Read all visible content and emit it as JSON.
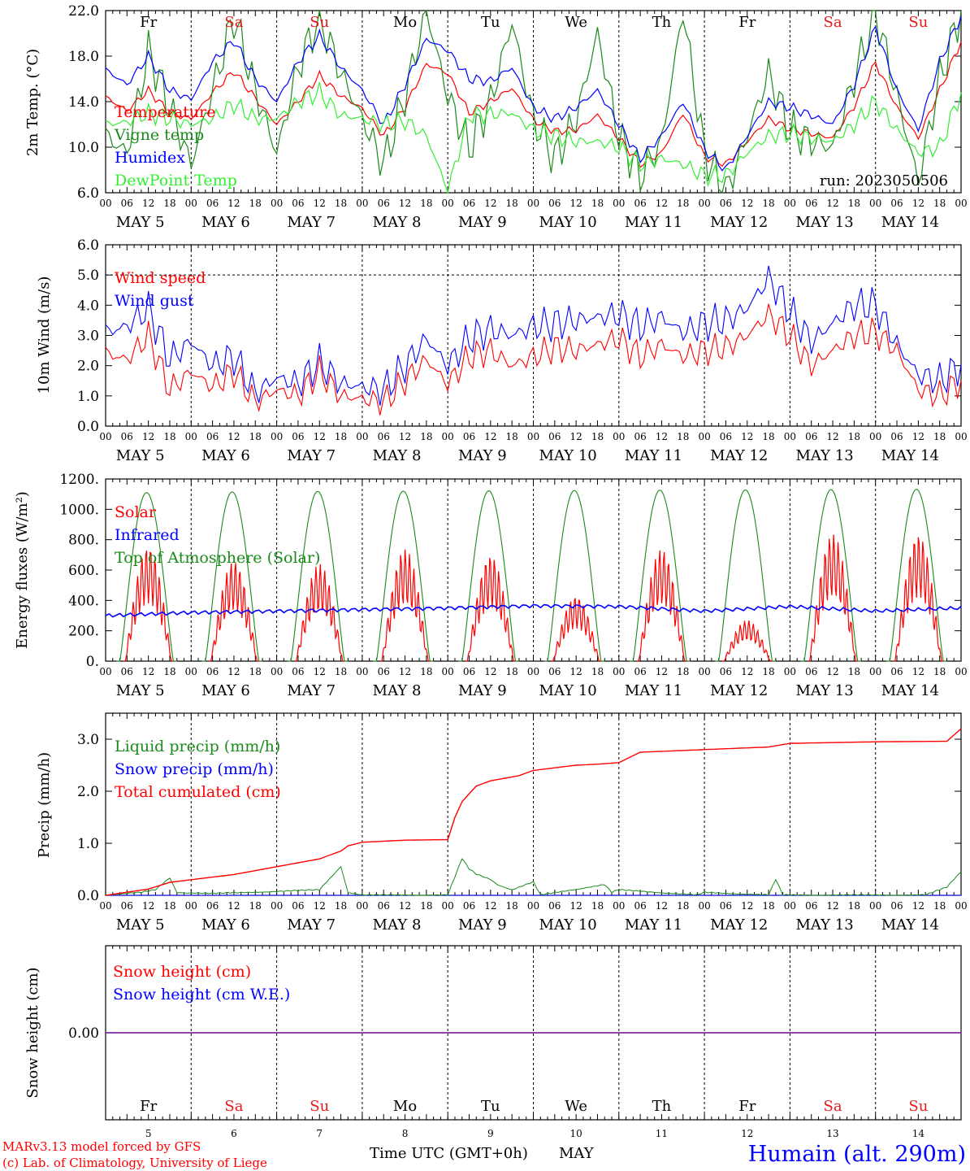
{
  "days": [
    "5",
    "6",
    "7",
    "8",
    "9",
    "10",
    "11",
    "12",
    "13",
    "14"
  ],
  "month": "MAY",
  "weekdays": [
    "Fr",
    "Sa",
    "Su",
    "Mo",
    "Tu",
    "We",
    "Th",
    "Fr",
    "Sa",
    "Su"
  ],
  "hour_ticks": [
    "00",
    "06",
    "12",
    "18"
  ],
  "final_hour_tick": "00",
  "colors": {
    "weekday": "#000000",
    "weekend": "#e41a1c",
    "red": "#ff0000",
    "green": "#1a8a1a",
    "blue": "#0000ff",
    "lightgreen": "#33ee33",
    "purple": "#7b2aa0"
  },
  "run_label": "run: 2023050506",
  "footer": {
    "model": "MARv3.13 model forced by GFS",
    "credit": "(c) Lab. of Climatology, University of Liege",
    "time_axis": "Time UTC (GMT+0h)",
    "month": "MAY",
    "station": "Humain (alt. 290m)"
  },
  "chart_data": [
    {
      "type": "line",
      "ylabel": "2m Temp. (°C)",
      "ylim": [
        6,
        22
      ],
      "ytick_labels": [
        "6.0",
        "10.0",
        "14.0",
        "18.0",
        "22.0"
      ],
      "x_unit": "hours since 00 UTC May 5",
      "series": [
        {
          "name": "Temperature",
          "color": "red",
          "x": [
            0,
            6,
            12,
            18,
            24,
            30,
            36,
            42,
            48,
            54,
            60,
            66,
            72,
            78,
            84,
            90,
            96,
            102,
            108,
            114,
            120,
            126,
            132,
            138,
            144,
            150,
            156,
            162,
            168,
            174,
            180,
            186,
            192,
            198,
            204,
            210,
            216,
            222,
            228,
            234,
            240
          ],
          "values": [
            14.4,
            13.2,
            15.0,
            13.0,
            12.5,
            14.8,
            16.7,
            14.3,
            12.0,
            14.0,
            16.3,
            14.5,
            13.4,
            11.0,
            13.5,
            17.3,
            16.5,
            13.0,
            14.0,
            15.2,
            12.4,
            11.4,
            11.5,
            12.8,
            10.8,
            8.5,
            9.5,
            13.0,
            9.2,
            8.5,
            10.5,
            12.5,
            11.6,
            11.2,
            10.8,
            13.6,
            17.4,
            13.5,
            10.8,
            15.0,
            19.3
          ]
        },
        {
          "name": "Vigne temp",
          "color": "green",
          "x": [
            0,
            6,
            12,
            18,
            24,
            30,
            36,
            42,
            48,
            54,
            60,
            66,
            72,
            78,
            84,
            90,
            96,
            102,
            108,
            114,
            120,
            126,
            132,
            138,
            144,
            150,
            156,
            162,
            168,
            174,
            180,
            186,
            192,
            198,
            204,
            210,
            216,
            222,
            228,
            234,
            240
          ],
          "values": [
            11.0,
            9.5,
            18.5,
            13.5,
            8.5,
            15.0,
            21.5,
            15.0,
            9.5,
            17.0,
            21.5,
            16.5,
            12.5,
            8.5,
            14.5,
            22.0,
            14.5,
            10.0,
            14.0,
            21.0,
            12.5,
            9.0,
            12.5,
            20.0,
            11.0,
            7.5,
            10.5,
            22.0,
            9.5,
            6.0,
            11.0,
            16.5,
            11.5,
            10.5,
            10.0,
            16.0,
            22.0,
            14.5,
            7.0,
            16.0,
            22.0
          ]
        },
        {
          "name": "Humidex",
          "color": "blue",
          "x": [
            0,
            6,
            12,
            18,
            24,
            30,
            36,
            42,
            48,
            54,
            60,
            66,
            72,
            78,
            84,
            90,
            96,
            102,
            108,
            114,
            120,
            126,
            132,
            138,
            144,
            150,
            156,
            162,
            168,
            174,
            180,
            186,
            192,
            198,
            204,
            210,
            216,
            222,
            228,
            234,
            240
          ],
          "values": [
            16.8,
            15.5,
            18.0,
            15.0,
            14.2,
            17.5,
            19.4,
            16.0,
            14.0,
            17.5,
            19.8,
            17.0,
            15.0,
            12.0,
            15.5,
            19.5,
            18.5,
            16.0,
            15.8,
            17.0,
            13.5,
            12.5,
            13.5,
            15.0,
            12.0,
            9.0,
            11.0,
            14.0,
            9.8,
            8.0,
            11.0,
            14.0,
            13.5,
            12.8,
            12.0,
            15.5,
            20.5,
            15.0,
            11.5,
            17.5,
            21.5
          ]
        },
        {
          "name": "DewPoint Temp",
          "color": "lightgreen",
          "x": [
            0,
            6,
            12,
            18,
            24,
            30,
            36,
            42,
            48,
            54,
            60,
            66,
            72,
            78,
            84,
            90,
            96,
            102,
            108,
            114,
            120,
            126,
            132,
            138,
            144,
            150,
            156,
            162,
            168,
            174,
            180,
            186,
            192,
            198,
            204,
            210,
            216,
            222,
            228,
            234,
            240
          ],
          "values": [
            12.0,
            12.2,
            13.0,
            12.5,
            12.0,
            12.5,
            13.8,
            12.5,
            12.5,
            14.0,
            14.8,
            12.8,
            12.5,
            12.0,
            12.3,
            11.0,
            6.2,
            12.8,
            12.9,
            13.0,
            11.5,
            11.0,
            10.5,
            10.5,
            10.0,
            8.5,
            9.0,
            8.5,
            7.5,
            7.5,
            9.5,
            11.0,
            11.2,
            10.8,
            10.5,
            12.0,
            14.0,
            11.5,
            9.5,
            10.0,
            14.8
          ]
        }
      ]
    },
    {
      "type": "line",
      "ylabel": "10m Wind (m/s)",
      "ylim": [
        0,
        6
      ],
      "ytick_labels": [
        "0.0",
        "1.0",
        "2.0",
        "3.0",
        "4.0",
        "5.0",
        "6.0"
      ],
      "x_unit": "hours since 00 UTC May 5",
      "series": [
        {
          "name": "Wind speed",
          "color": "red",
          "x": [
            0,
            6,
            12,
            18,
            24,
            30,
            36,
            42,
            48,
            54,
            60,
            66,
            72,
            78,
            84,
            90,
            96,
            102,
            108,
            114,
            120,
            126,
            132,
            138,
            144,
            150,
            156,
            162,
            168,
            174,
            180,
            186,
            192,
            198,
            204,
            210,
            216,
            222,
            228,
            234,
            240
          ],
          "values": [
            2.4,
            2.2,
            3.0,
            1.2,
            1.8,
            1.3,
            1.8,
            0.8,
            1.2,
            1.0,
            1.8,
            1.0,
            0.9,
            0.8,
            1.5,
            2.2,
            1.4,
            2.3,
            2.5,
            2.0,
            2.3,
            2.6,
            2.5,
            2.7,
            2.9,
            2.3,
            2.7,
            2.3,
            2.5,
            2.6,
            3.0,
            3.7,
            3.0,
            2.0,
            2.5,
            3.0,
            3.1,
            2.5,
            1.2,
            1.0,
            1.5
          ]
        },
        {
          "name": "Wind gust",
          "color": "blue",
          "x": [
            0,
            6,
            12,
            18,
            24,
            30,
            36,
            42,
            48,
            54,
            60,
            66,
            72,
            78,
            84,
            90,
            96,
            102,
            108,
            114,
            120,
            126,
            132,
            138,
            144,
            150,
            156,
            162,
            168,
            174,
            180,
            186,
            192,
            198,
            204,
            210,
            216,
            222,
            228,
            234,
            240
          ],
          "values": [
            3.1,
            3.3,
            3.9,
            2.2,
            2.8,
            2.0,
            2.3,
            1.1,
            1.6,
            1.4,
            2.1,
            1.4,
            1.3,
            1.2,
            2.0,
            2.9,
            2.0,
            2.9,
            3.2,
            3.0,
            3.3,
            3.4,
            3.5,
            3.6,
            3.7,
            3.3,
            3.6,
            3.1,
            3.4,
            3.5,
            3.9,
            4.9,
            3.8,
            2.8,
            3.4,
            4.0,
            4.0,
            2.7,
            1.7,
            1.5,
            2.0
          ]
        }
      ]
    },
    {
      "type": "line",
      "ylabel": "Energy fluxes (W/m²)",
      "ylim": [
        0,
        1200
      ],
      "ytick_labels": [
        "0.",
        "200.",
        "400.",
        "600.",
        "800.",
        "1000.",
        "1200."
      ],
      "x_unit": "hours since 00 UTC May 5",
      "series": [
        {
          "name": "Solar",
          "color": "red",
          "daily_peak": [
            760,
            660,
            640,
            740,
            700,
            430,
            740,
            270,
            840,
            840
          ]
        },
        {
          "name": "Infrared",
          "color": "blue",
          "x": [
            0,
            24,
            48,
            72,
            96,
            120,
            144,
            168,
            192,
            216,
            240
          ],
          "values": [
            300,
            320,
            330,
            340,
            350,
            365,
            360,
            330,
            360,
            330,
            350
          ]
        },
        {
          "name": "Top of Atmosphere (Solar)",
          "color": "green",
          "daily_peak": [
            1110,
            1115,
            1118,
            1120,
            1122,
            1124,
            1126,
            1128,
            1130,
            1132
          ]
        }
      ]
    },
    {
      "type": "line",
      "ylabel": "Precip (mm/h)",
      "ylim": [
        0,
        3.5
      ],
      "ytick_labels": [
        "0.0",
        "1.0",
        "2.0",
        "3.0"
      ],
      "x_unit": "hours since 00 UTC May 5",
      "series": [
        {
          "name": "Liquid precip (mm/h)",
          "color": "green",
          "x": [
            0,
            10,
            14,
            18,
            20,
            30,
            40,
            60,
            66,
            68,
            72,
            96,
            100,
            102,
            104,
            108,
            110,
            114,
            120,
            122,
            140,
            142,
            144,
            166,
            168,
            186,
            188,
            190,
            230,
            236,
            240
          ],
          "values": [
            0.0,
            0.05,
            0.1,
            0.33,
            0.05,
            0.03,
            0.05,
            0.1,
            0.55,
            0.05,
            0.0,
            0.0,
            0.7,
            0.5,
            0.4,
            0.3,
            0.2,
            0.1,
            0.25,
            0.0,
            0.2,
            0.05,
            0.1,
            0.0,
            0.05,
            0.0,
            0.3,
            0.0,
            0.0,
            0.15,
            0.45
          ]
        },
        {
          "name": "Snow precip (mm/h)",
          "color": "blue",
          "x": [
            0,
            240
          ],
          "values": [
            0,
            0
          ]
        },
        {
          "name": "Total cumulated (cm)",
          "color": "red",
          "x": [
            0,
            12,
            18,
            24,
            36,
            48,
            60,
            66,
            68,
            72,
            84,
            96,
            98,
            100,
            104,
            108,
            116,
            120,
            126,
            132,
            138,
            144,
            150,
            168,
            186,
            192,
            216,
            236,
            240
          ],
          "values": [
            0.0,
            0.12,
            0.25,
            0.3,
            0.4,
            0.55,
            0.7,
            0.85,
            0.95,
            1.02,
            1.06,
            1.07,
            1.5,
            1.8,
            2.1,
            2.2,
            2.3,
            2.4,
            2.45,
            2.5,
            2.52,
            2.55,
            2.75,
            2.8,
            2.85,
            2.92,
            2.95,
            2.96,
            3.2
          ]
        }
      ]
    },
    {
      "type": "line",
      "ylabel": "Snow height (cm)",
      "ytick_labels": [
        "0.00"
      ],
      "x_unit": "hours since 00 UTC May 5",
      "series": [
        {
          "name": "Snow height (cm)",
          "color": "red",
          "x": [
            0,
            240
          ],
          "values": [
            0,
            0
          ]
        },
        {
          "name": "Snow height (cm W.E.)",
          "color": "blue",
          "x": [
            0,
            240
          ],
          "values": [
            0,
            0
          ]
        }
      ]
    }
  ]
}
